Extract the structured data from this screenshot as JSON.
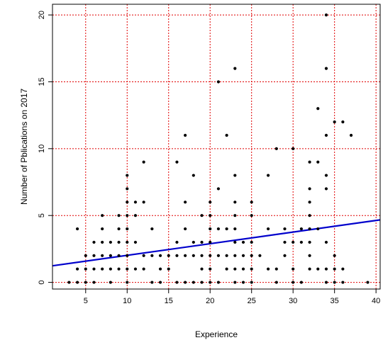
{
  "chart_data": {
    "type": "scatter",
    "title": "",
    "xlabel": "Experience",
    "ylabel": "Number of Pblications on 2017",
    "xlim": [
      1,
      40.5
    ],
    "ylim": [
      -0.5,
      20.8
    ],
    "xticks": [
      5,
      10,
      15,
      20,
      25,
      30,
      35,
      40
    ],
    "yticks": [
      0,
      5,
      10,
      15,
      20
    ],
    "grid": true,
    "colors": {
      "points": "#000000",
      "grid": "#e00000",
      "regression": "#0000cc"
    },
    "points": [
      [
        3,
        0
      ],
      [
        4,
        0
      ],
      [
        4,
        1
      ],
      [
        4,
        4
      ],
      [
        5,
        0
      ],
      [
        5,
        1
      ],
      [
        5,
        2
      ],
      [
        6,
        0
      ],
      [
        6,
        1
      ],
      [
        6,
        2
      ],
      [
        6,
        3
      ],
      [
        7,
        1
      ],
      [
        7,
        2
      ],
      [
        7,
        3
      ],
      [
        7,
        4
      ],
      [
        7,
        5
      ],
      [
        8,
        0
      ],
      [
        8,
        1
      ],
      [
        8,
        2
      ],
      [
        8,
        3
      ],
      [
        9,
        1
      ],
      [
        9,
        2
      ],
      [
        9,
        3
      ],
      [
        9,
        4
      ],
      [
        9,
        5
      ],
      [
        10,
        0
      ],
      [
        10,
        1
      ],
      [
        10,
        2
      ],
      [
        10,
        3
      ],
      [
        10,
        4
      ],
      [
        10,
        5
      ],
      [
        10,
        6
      ],
      [
        10,
        7
      ],
      [
        10,
        8
      ],
      [
        11,
        1
      ],
      [
        11,
        3
      ],
      [
        11,
        5
      ],
      [
        11,
        6
      ],
      [
        12,
        1
      ],
      [
        12,
        2
      ],
      [
        12,
        6
      ],
      [
        12,
        9
      ],
      [
        13,
        0
      ],
      [
        13,
        2
      ],
      [
        13,
        4
      ],
      [
        14,
        0
      ],
      [
        14,
        1
      ],
      [
        14,
        2
      ],
      [
        15,
        1
      ],
      [
        15,
        2
      ],
      [
        16,
        0
      ],
      [
        16,
        2
      ],
      [
        16,
        3
      ],
      [
        16,
        9
      ],
      [
        17,
        0
      ],
      [
        17,
        2
      ],
      [
        17,
        4
      ],
      [
        17,
        6
      ],
      [
        17,
        11
      ],
      [
        18,
        0
      ],
      [
        18,
        2
      ],
      [
        18,
        3
      ],
      [
        18,
        8
      ],
      [
        19,
        0
      ],
      [
        19,
        1
      ],
      [
        19,
        2
      ],
      [
        19,
        3
      ],
      [
        19,
        5
      ],
      [
        20,
        0
      ],
      [
        20,
        1
      ],
      [
        20,
        2
      ],
      [
        20,
        3
      ],
      [
        20,
        4
      ],
      [
        20,
        5
      ],
      [
        20,
        6
      ],
      [
        21,
        0
      ],
      [
        21,
        2
      ],
      [
        21,
        4
      ],
      [
        21,
        7
      ],
      [
        21,
        15
      ],
      [
        22,
        1
      ],
      [
        22,
        2
      ],
      [
        22,
        4
      ],
      [
        22,
        11
      ],
      [
        23,
        0
      ],
      [
        23,
        1
      ],
      [
        23,
        2
      ],
      [
        23,
        3
      ],
      [
        23,
        4
      ],
      [
        23,
        5
      ],
      [
        23,
        6
      ],
      [
        23,
        8
      ],
      [
        23,
        16
      ],
      [
        24,
        0
      ],
      [
        24,
        1
      ],
      [
        24,
        2
      ],
      [
        24,
        3
      ],
      [
        25,
        0
      ],
      [
        25,
        1
      ],
      [
        25,
        2
      ],
      [
        25,
        3
      ],
      [
        25,
        5
      ],
      [
        25,
        6
      ],
      [
        26,
        2
      ],
      [
        27,
        1
      ],
      [
        27,
        4
      ],
      [
        27,
        8
      ],
      [
        28,
        0
      ],
      [
        28,
        1
      ],
      [
        28,
        10
      ],
      [
        29,
        2
      ],
      [
        29,
        3
      ],
      [
        29,
        4
      ],
      [
        30,
        0
      ],
      [
        30,
        1
      ],
      [
        30,
        3
      ],
      [
        30,
        10
      ],
      [
        31,
        0
      ],
      [
        31,
        3
      ],
      [
        31,
        4
      ],
      [
        32,
        1
      ],
      [
        32,
        2
      ],
      [
        32,
        3
      ],
      [
        32,
        4
      ],
      [
        32,
        5
      ],
      [
        32,
        6
      ],
      [
        32,
        7
      ],
      [
        32,
        9
      ],
      [
        33,
        1
      ],
      [
        33,
        4
      ],
      [
        33,
        9
      ],
      [
        33,
        13
      ],
      [
        34,
        0
      ],
      [
        34,
        1
      ],
      [
        34,
        3
      ],
      [
        34,
        7
      ],
      [
        34,
        8
      ],
      [
        34,
        11
      ],
      [
        34,
        16
      ],
      [
        34,
        20
      ],
      [
        35,
        0
      ],
      [
        35,
        1
      ],
      [
        35,
        2
      ],
      [
        35,
        12
      ],
      [
        36,
        0
      ],
      [
        36,
        1
      ],
      [
        36,
        12
      ],
      [
        37,
        11
      ],
      [
        39,
        0
      ]
    ],
    "regression_line": {
      "slope": 0.087,
      "intercept": 1.15
    }
  }
}
